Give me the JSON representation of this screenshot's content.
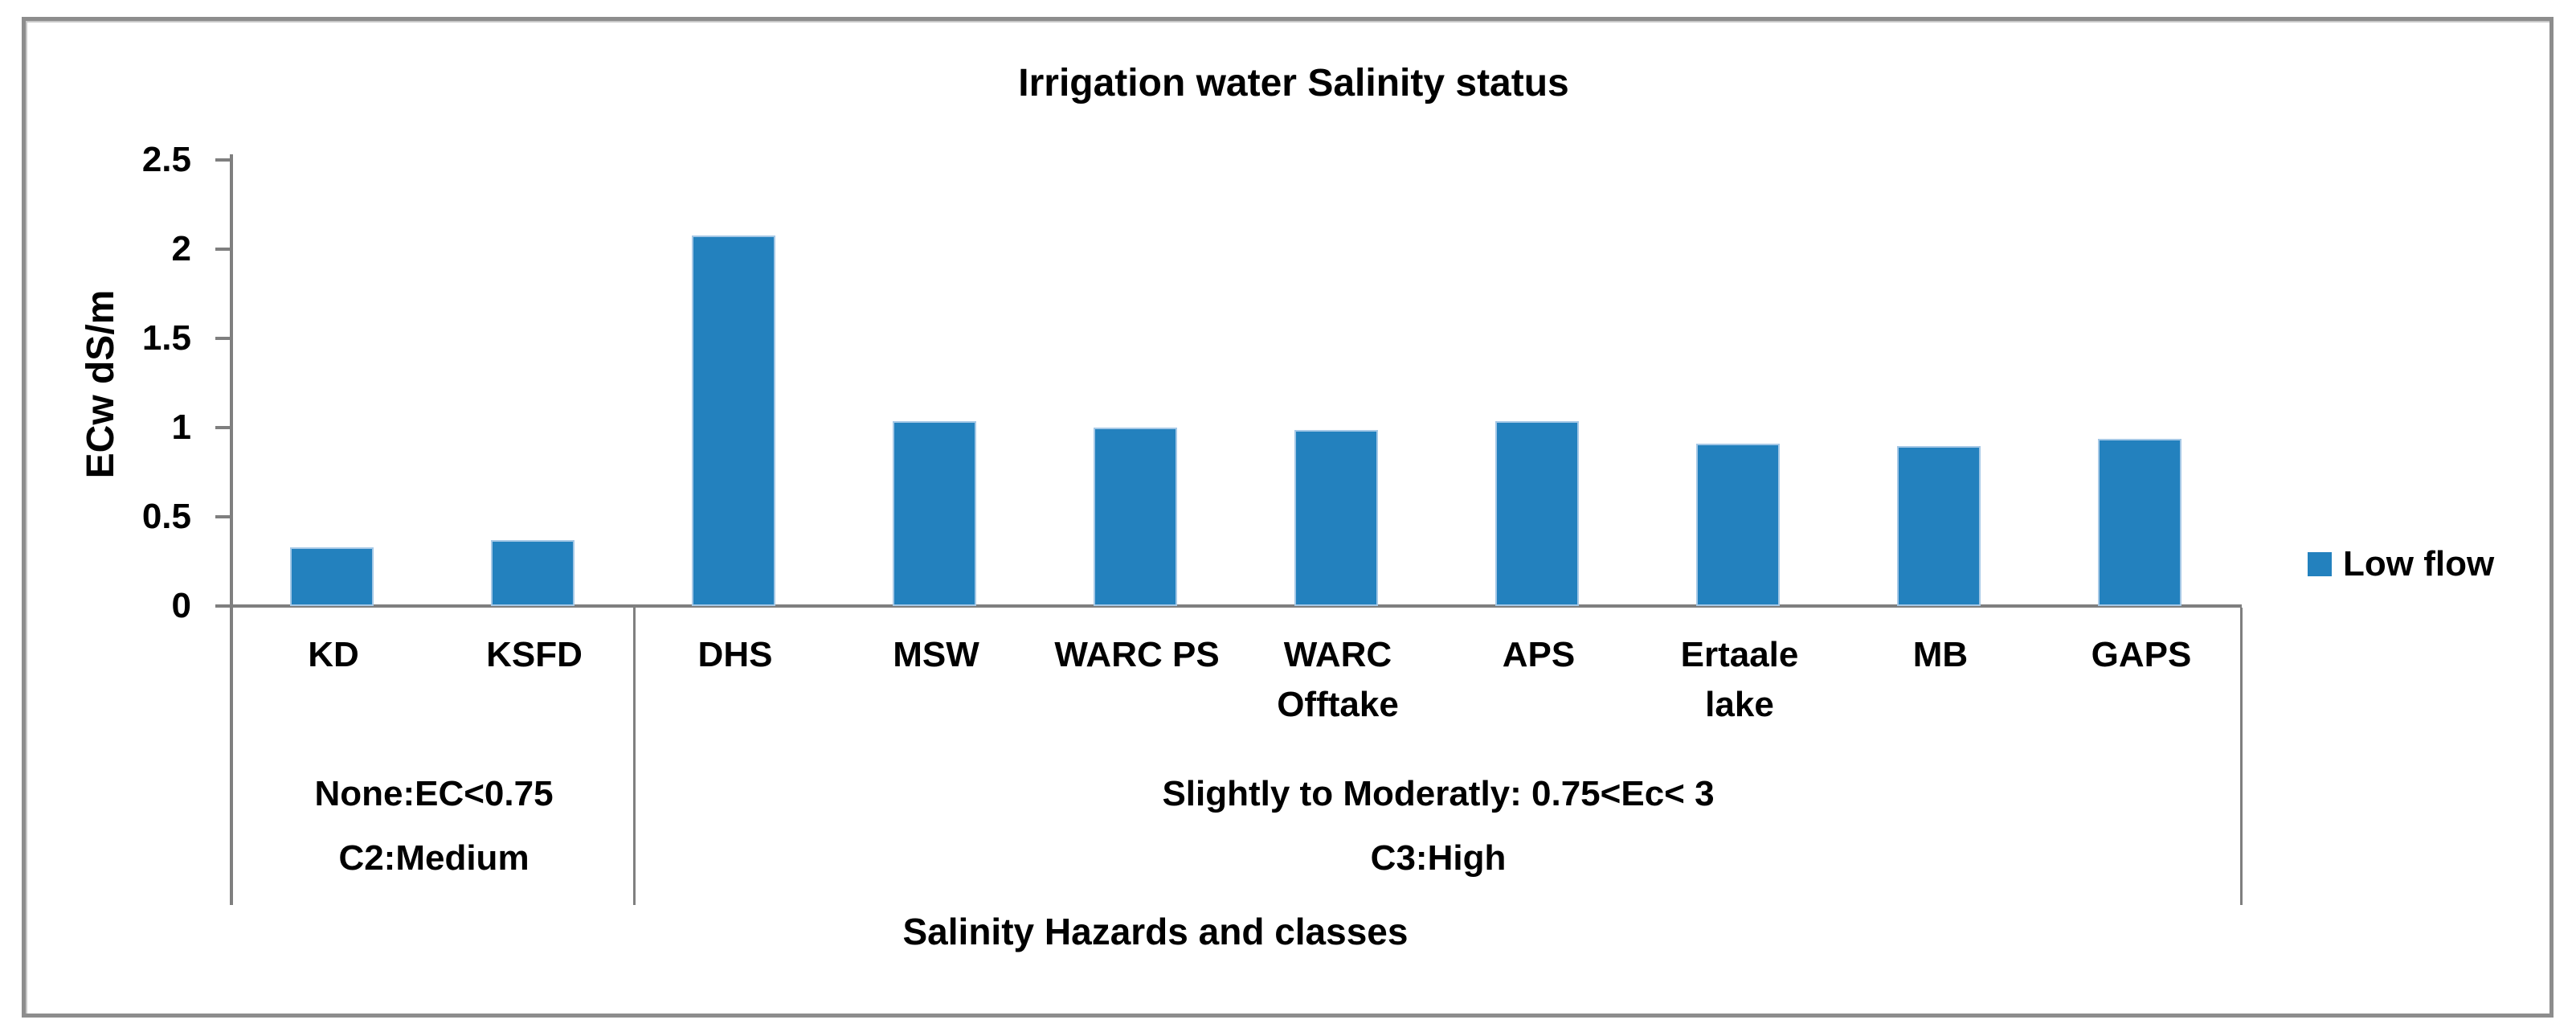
{
  "figure": {
    "title": "Irrigation water Salinity status",
    "y_axis_label": "ECw dS/m",
    "x_axis_label": "Salinity Hazards and classes",
    "legend": {
      "label": "Low flow",
      "swatch_color": "#2381BE"
    }
  },
  "colors": {
    "bar_fill": "#2381BE",
    "bar_edge": "#a5c8e6",
    "axis_gray": "#7f7f7f",
    "frame_gray": "#8d8d8d",
    "text": "#000000"
  },
  "chart_data": {
    "type": "bar",
    "title": "Irrigation water Salinity status",
    "xlabel": "Salinity Hazards and classes",
    "ylabel": "ECw dS/m",
    "ylim": [
      0,
      2.5
    ],
    "grid": false,
    "legend_position": "right",
    "ytick_values": [
      0,
      0.5,
      1,
      1.5,
      2,
      2.5
    ],
    "ytick_labels": [
      "0",
      "0.5",
      "1",
      "1.5",
      "2",
      "2.5"
    ],
    "categories": [
      "KD",
      "KSFD",
      "DHS",
      "MSW",
      "WARC PS",
      "WARC Offtake",
      "APS",
      "Ertaale lake",
      "MB",
      "GAPS"
    ],
    "category_display_lines": [
      [
        "KD"
      ],
      [
        "KSFD"
      ],
      [
        "DHS"
      ],
      [
        "MSW"
      ],
      [
        "WARC PS"
      ],
      [
        "WARC",
        "Offtake"
      ],
      [
        "APS"
      ],
      [
        "Ertaale",
        "lake"
      ],
      [
        "MB"
      ],
      [
        "GAPS"
      ]
    ],
    "series": [
      {
        "name": "Low flow",
        "color": "#2381BE",
        "values": [
          0.31,
          0.35,
          2.06,
          1.02,
          0.98,
          0.97,
          1.02,
          0.89,
          0.88,
          0.92
        ]
      }
    ],
    "groups": [
      {
        "salinity_label": "None:EC<0.75",
        "class_label": "C2:Medium",
        "start_category_index": 0,
        "end_category_index": 1
      },
      {
        "salinity_label": "Slightly to Moderatly: 0.75<Ec< 3",
        "class_label": "C3:High",
        "start_category_index": 2,
        "end_category_index": 9
      }
    ]
  }
}
